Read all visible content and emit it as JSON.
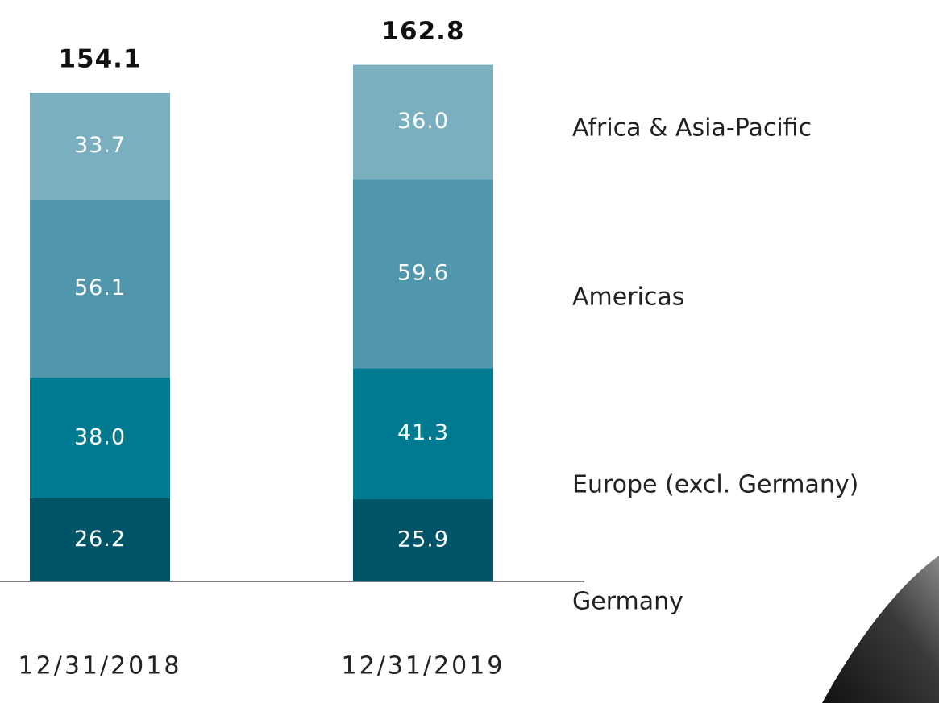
{
  "chart_data": {
    "type": "stacked-bar",
    "categories": [
      "12/31/2018",
      "12/31/2019"
    ],
    "totals": [
      154.1,
      162.8
    ],
    "series": [
      {
        "name": "Germany",
        "color": "#005467",
        "values": [
          26.2,
          25.9
        ],
        "value_labels": [
          "26.2",
          "25.9"
        ]
      },
      {
        "name": "Europe (excl. Germany)",
        "color": "#007a90",
        "values": [
          38.0,
          41.3
        ],
        "value_labels": [
          "38.0",
          "41.3"
        ]
      },
      {
        "name": "Americas",
        "color": "#5097ae",
        "values": [
          56.1,
          59.6
        ],
        "value_labels": [
          "56.1",
          "59.6"
        ]
      },
      {
        "name": "Africa & Asia-Pacific",
        "color": "#7aafbf",
        "values": [
          33.7,
          36.0
        ],
        "value_labels": [
          "33.7",
          "36.0"
        ]
      }
    ]
  }
}
